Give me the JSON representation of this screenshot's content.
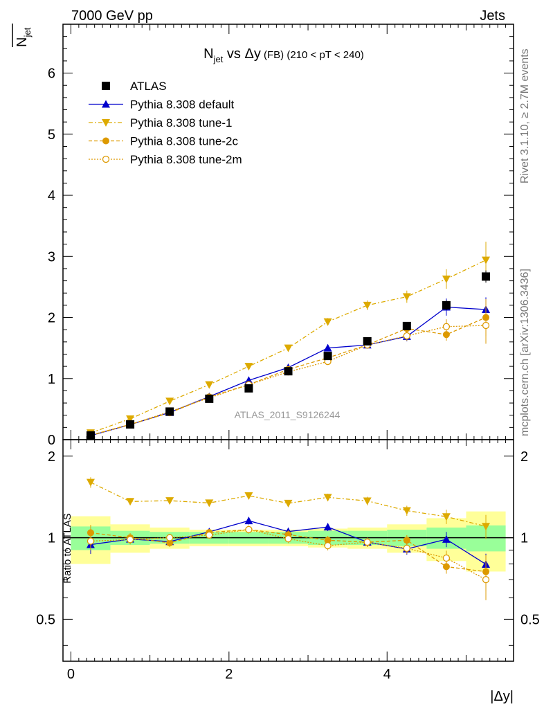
{
  "header": {
    "left": "7000 GeV pp",
    "right": "Jets"
  },
  "side_labels": {
    "rivet": "Rivet 3.1.10, ≥ 2.7M events",
    "mcplots": "mcplots.cern.ch [arXiv:1306.3436]"
  },
  "watermark": "ATLAS_2011_S9126244",
  "chart_data": {
    "type": "line",
    "title": {
      "n": "N",
      "n_sub": "jet",
      "vs": " vs ",
      "delta": "Δy",
      "fb": " (FB)",
      "cut": " (210 < pT < 240)"
    },
    "ylabel": {
      "n": "N",
      "sub": "jet"
    },
    "xlabel": "|Δy|",
    "ratio_ylabel": "Ratio to ATLAS",
    "xlim": [
      -0.1,
      5.6
    ],
    "ylim": [
      0,
      6.8
    ],
    "ratio_ylim": [
      0.35,
      2.3
    ],
    "ratio_log": true,
    "x_ticks": [
      0,
      2,
      4
    ],
    "y_ticks": [
      0,
      1,
      2,
      3,
      4,
      5,
      6
    ],
    "ratio_ticks": [
      0.5,
      1,
      2
    ],
    "bins": [
      [
        0,
        0.5
      ],
      [
        0.5,
        1
      ],
      [
        1,
        1.5
      ],
      [
        1.5,
        2
      ],
      [
        2,
        2.5
      ],
      [
        2.5,
        3
      ],
      [
        3,
        3.5
      ],
      [
        3.5,
        4
      ],
      [
        4,
        4.5
      ],
      [
        4.5,
        5
      ],
      [
        5,
        5.5
      ]
    ],
    "x": [
      0.25,
      0.75,
      1.25,
      1.75,
      2.25,
      2.75,
      3.25,
      3.75,
      4.25,
      4.75,
      5.25
    ],
    "data": {
      "name": "ATLAS",
      "values": [
        0.07,
        0.25,
        0.46,
        0.67,
        0.84,
        1.12,
        1.37,
        1.61,
        1.86,
        2.2,
        2.67
      ],
      "err": [
        0.01,
        0.01,
        0.02,
        0.02,
        0.03,
        0.03,
        0.04,
        0.05,
        0.06,
        0.08,
        0.1
      ],
      "band_green": [
        0.1,
        0.06,
        0.05,
        0.05,
        0.05,
        0.05,
        0.06,
        0.06,
        0.07,
        0.09,
        0.11
      ],
      "band_yellow": [
        0.2,
        0.12,
        0.09,
        0.07,
        0.07,
        0.07,
        0.08,
        0.09,
        0.12,
        0.18,
        0.25
      ]
    },
    "series": [
      {
        "name": "Pythia 8.308 default",
        "color": "#0000cc",
        "marker": "triangle-up",
        "dash": "",
        "values": [
          0.066,
          0.247,
          0.445,
          0.704,
          0.97,
          1.18,
          1.5,
          1.55,
          1.69,
          2.17,
          2.13
        ],
        "err": [
          0.005,
          0.01,
          0.015,
          0.02,
          0.03,
          0.04,
          0.05,
          0.06,
          0.08,
          0.14,
          0.2
        ]
      },
      {
        "name": "Pythia 8.308 tune-1",
        "color": "#ddaa00",
        "marker": "triangle-down",
        "dash": "6,3,2,3",
        "values": [
          0.112,
          0.34,
          0.63,
          0.9,
          1.2,
          1.5,
          1.93,
          2.2,
          2.34,
          2.63,
          2.94
        ],
        "err": [
          0.005,
          0.01,
          0.015,
          0.02,
          0.03,
          0.04,
          0.06,
          0.08,
          0.1,
          0.16,
          0.3
        ]
      },
      {
        "name": "Pythia 8.308 tune-2c",
        "color": "#dd9900",
        "marker": "circle",
        "dash": "5,3",
        "values": [
          0.073,
          0.25,
          0.44,
          0.7,
          0.9,
          1.15,
          1.34,
          1.55,
          1.82,
          1.72,
          2.0
        ],
        "err": [
          0.005,
          0.01,
          0.015,
          0.02,
          0.03,
          0.04,
          0.05,
          0.06,
          0.08,
          0.1,
          0.3
        ]
      },
      {
        "name": "Pythia 8.308 tune-2m",
        "color": "#dd9900",
        "marker": "circle-open",
        "dash": "2,2",
        "values": [
          0.068,
          0.246,
          0.46,
          0.685,
          0.9,
          1.11,
          1.28,
          1.55,
          1.7,
          1.85,
          1.87
        ],
        "err": [
          0.005,
          0.01,
          0.015,
          0.02,
          0.03,
          0.04,
          0.05,
          0.06,
          0.08,
          0.12,
          0.3
        ]
      }
    ],
    "legend_placement": "top-left",
    "colors": {
      "green_band": "#99ff99",
      "yellow_band": "#ffff99",
      "watermark": "#999999",
      "side_text": "#777777"
    }
  }
}
